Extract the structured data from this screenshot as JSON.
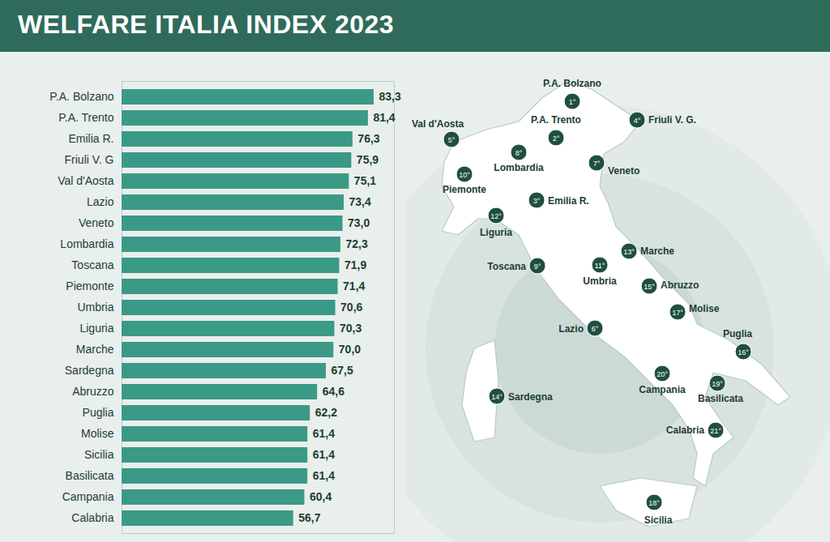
{
  "chart_data": {
    "type": "bar",
    "title": "WELFARE ITALIA INDEX 2023",
    "orientation": "horizontal",
    "categories": [
      "P.A. Bolzano",
      "P.A. Trento",
      "Emilia R.",
      "Friuli V. G",
      "Val d'Aosta",
      "Lazio",
      "Veneto",
      "Lombardia",
      "Toscana",
      "Piemonte",
      "Umbria",
      "Liguria",
      "Marche",
      "Sardegna",
      "Abruzzo",
      "Puglia",
      "Molise",
      "Sicilia",
      "Basilicata",
      "Campania",
      "Calabria"
    ],
    "values": [
      83.3,
      81.4,
      76.3,
      75.9,
      75.1,
      73.4,
      73.0,
      72.3,
      71.9,
      71.4,
      70.6,
      70.3,
      70.0,
      67.5,
      64.6,
      62.2,
      61.4,
      61.4,
      61.4,
      60.4,
      56.7
    ],
    "value_labels": [
      "83,3",
      "81,4",
      "76,3",
      "75,9",
      "75,1",
      "73,4",
      "73,0",
      "72,3",
      "71,9",
      "71,4",
      "70,6",
      "70,3",
      "70,0",
      "67,5",
      "64,6",
      "62,2",
      "61,4",
      "61,4",
      "61,4",
      "60,4",
      "56,7"
    ],
    "color": "#3a9a85",
    "xlim": [
      0,
      90
    ],
    "xticks": [],
    "data_labels": true,
    "tick_labels": "y",
    "grid": false
  },
  "map": {
    "markers": [
      {
        "name": "P.A. Bolzano",
        "rank": "1°"
      },
      {
        "name": "P.A. Trento",
        "rank": "2°"
      },
      {
        "name": "Emilia R.",
        "rank": "3°"
      },
      {
        "name": "Friuli V. G.",
        "rank": "4°"
      },
      {
        "name": "Val d'Aosta",
        "rank": "5°"
      },
      {
        "name": "Lazio",
        "rank": "6°"
      },
      {
        "name": "Veneto",
        "rank": "7°"
      },
      {
        "name": "Lombardia",
        "rank": "8°"
      },
      {
        "name": "Toscana",
        "rank": "9°"
      },
      {
        "name": "Piemonte",
        "rank": "10°"
      },
      {
        "name": "Umbria",
        "rank": "11°"
      },
      {
        "name": "Liguria",
        "rank": "12°"
      },
      {
        "name": "Marche",
        "rank": "13°"
      },
      {
        "name": "Sardegna",
        "rank": "14°"
      },
      {
        "name": "Abruzzo",
        "rank": "15°"
      },
      {
        "name": "Puglia",
        "rank": "16°"
      },
      {
        "name": "Molise",
        "rank": "17°"
      },
      {
        "name": "Sicilia",
        "rank": "18°"
      },
      {
        "name": "Basilicata",
        "rank": "19°"
      },
      {
        "name": "Campania",
        "rank": "20°"
      },
      {
        "name": "Calabria",
        "rank": "21°"
      }
    ]
  }
}
